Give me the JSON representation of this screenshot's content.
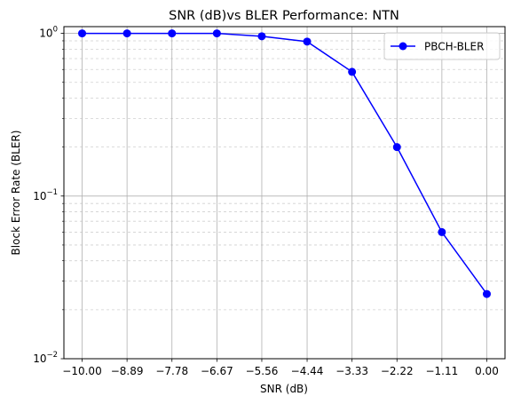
{
  "chart_data": {
    "type": "line",
    "title": "SNR (dB)vs BLER Performance: NTN",
    "xlabel": "SNR (dB)",
    "ylabel": "Block Error Rate (BLER)",
    "y_scale": "log",
    "ylim": [
      0.01,
      1.1
    ],
    "xlim": [
      -10.45,
      0.45
    ],
    "grid": "major solid, y minor dashed",
    "legend_position": "top-right",
    "x": [
      -10.0,
      -8.89,
      -7.78,
      -6.67,
      -5.56,
      -4.44,
      -3.33,
      -2.22,
      -1.11,
      0.0
    ],
    "x_tick_labels": [
      "−10.00",
      "−8.89",
      "−7.78",
      "−6.67",
      "−5.56",
      "−4.44",
      "−3.33",
      "−2.22",
      "−1.11",
      "0.00"
    ],
    "y_ticks": [
      {
        "value": 1,
        "label_base": "10",
        "label_exp": "0"
      },
      {
        "value": 0.1,
        "label_base": "10",
        "label_exp": "−1"
      },
      {
        "value": 0.01,
        "label_base": "10",
        "label_exp": "−2"
      }
    ],
    "series": [
      {
        "name": "PBCH-BLER",
        "color": "#0000ff",
        "marker": "circle",
        "values": [
          1.0,
          1.0,
          1.0,
          1.0,
          0.96,
          0.89,
          0.58,
          0.2,
          0.06,
          0.025
        ]
      }
    ]
  }
}
